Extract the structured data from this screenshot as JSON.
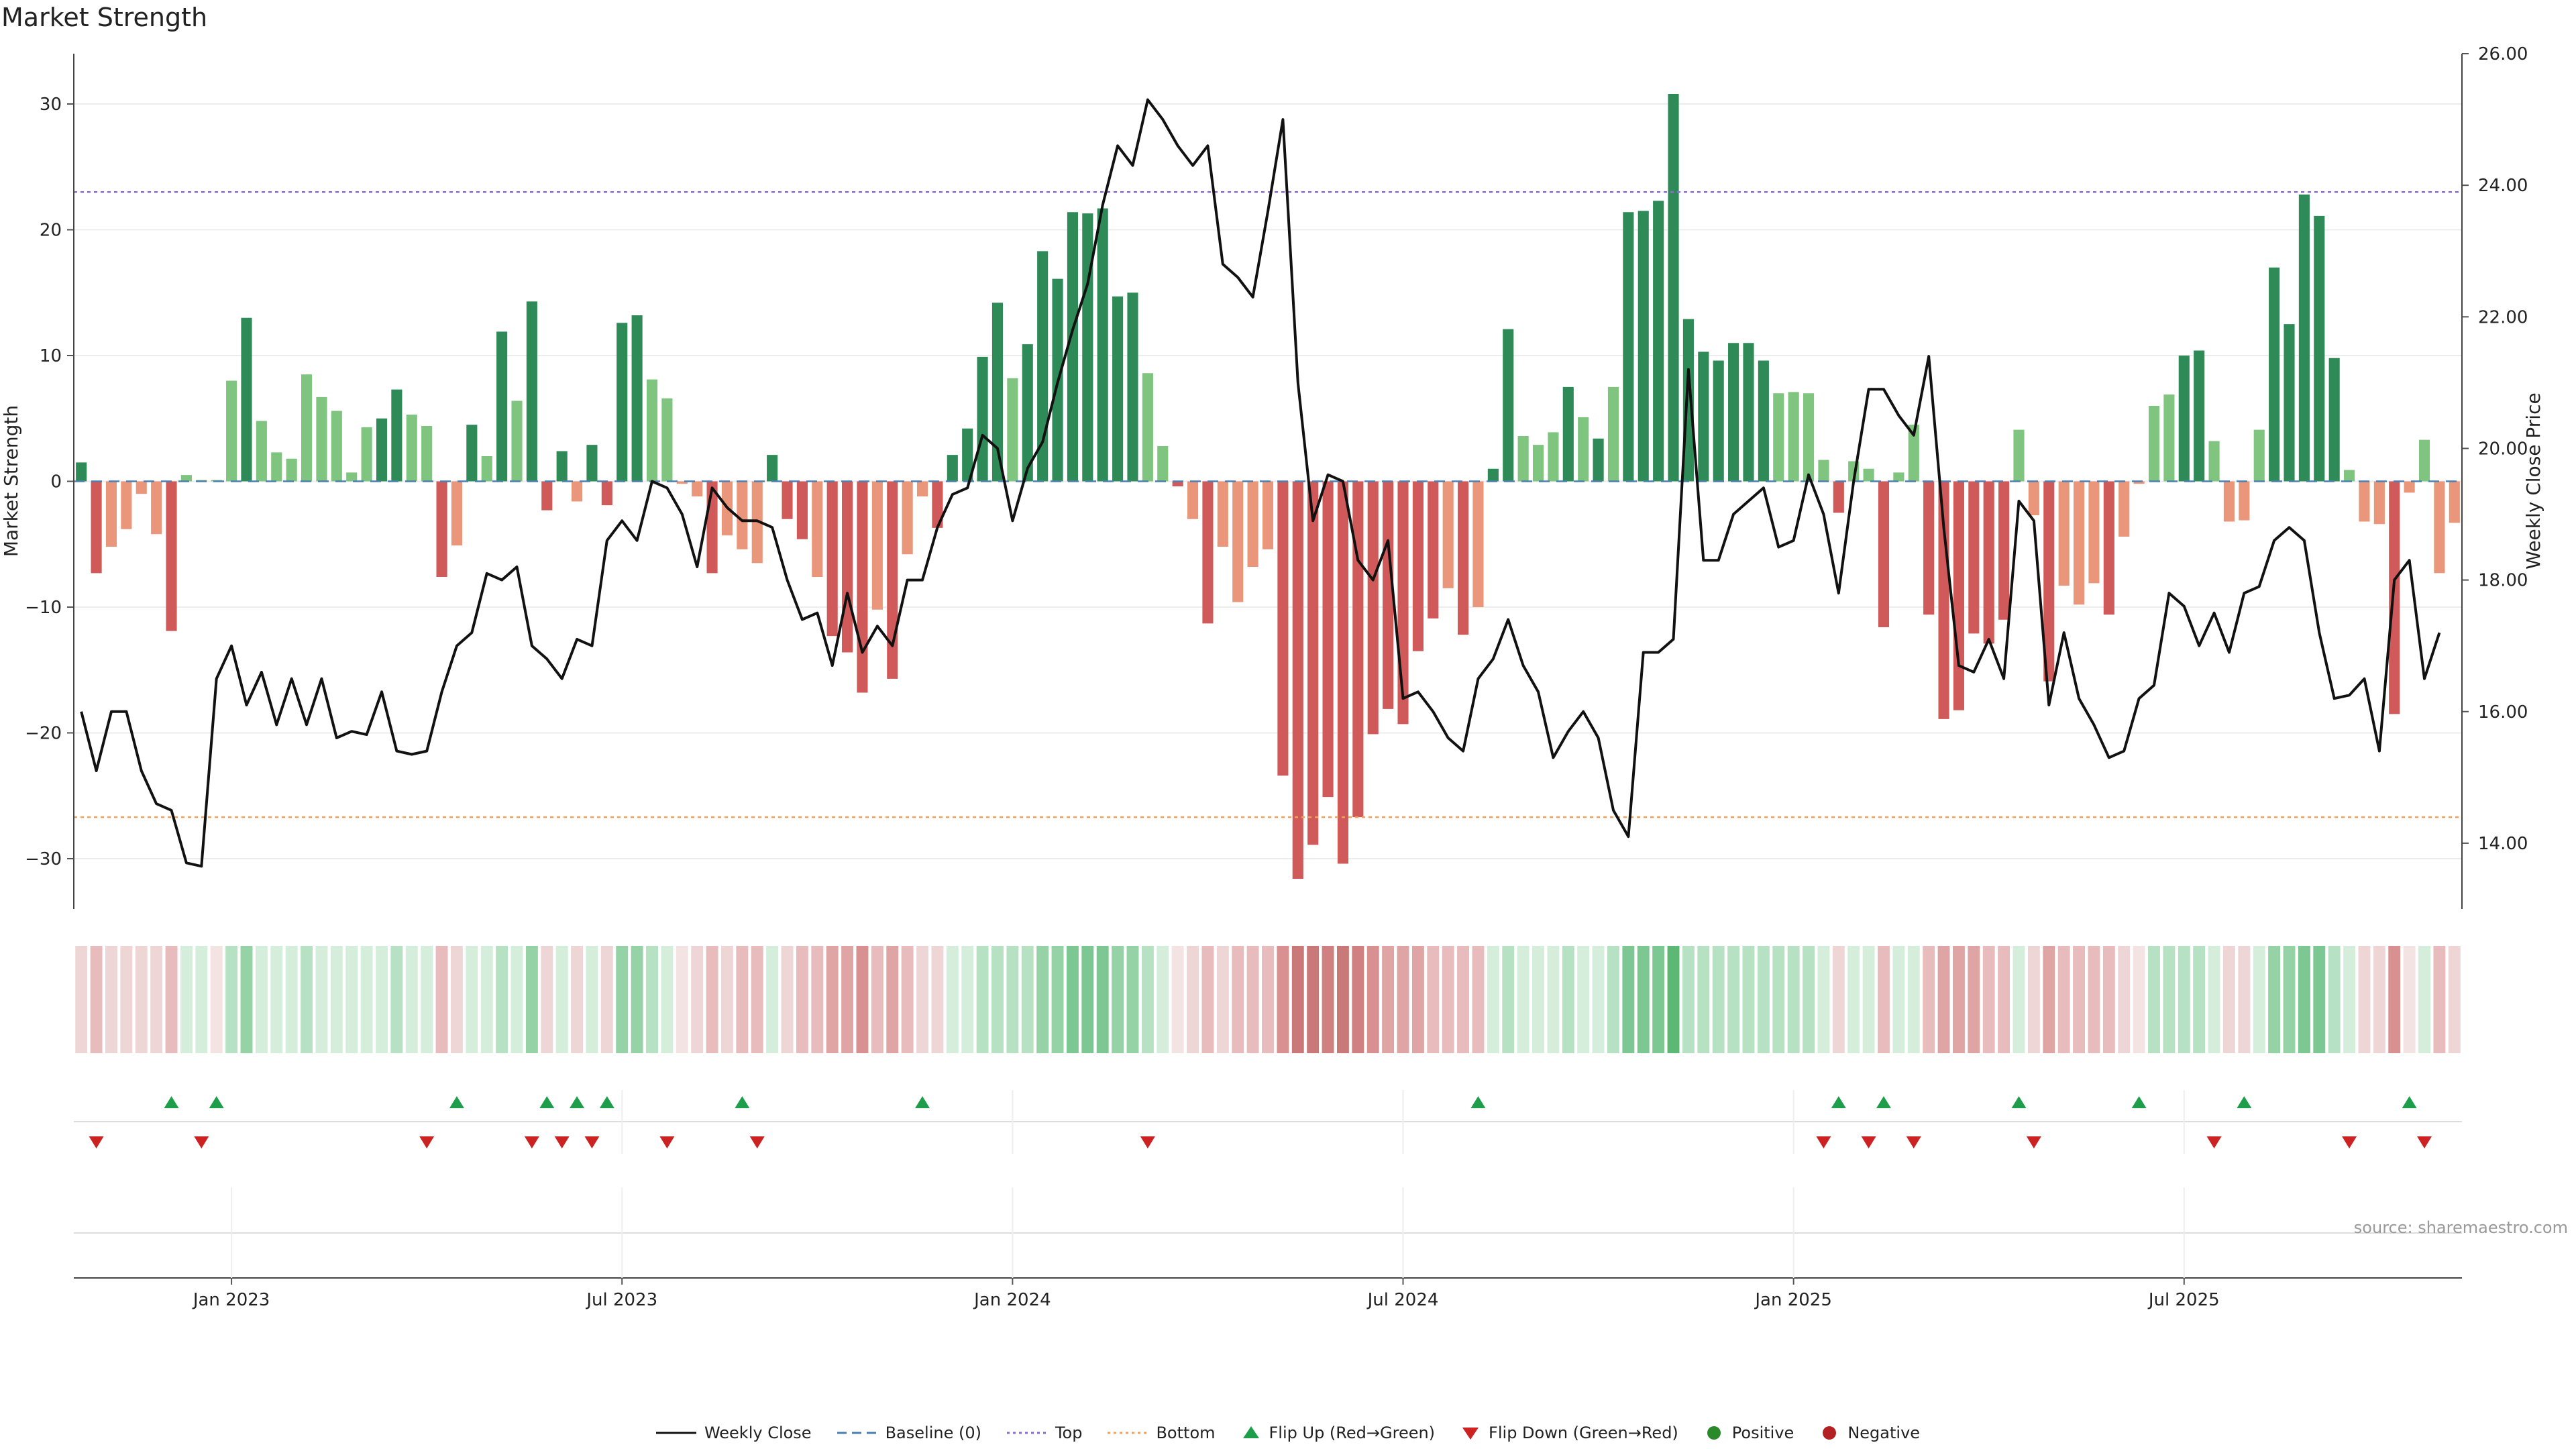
{
  "chart_data": {
    "type": "bar",
    "title": "Market Strength",
    "source": "source: sharemaestro.com",
    "ylabel_left": "Market Strength",
    "ylabel_right": "Weekly Close Price",
    "ylim_left": [
      -34,
      34
    ],
    "ylim_right": [
      13.0,
      26.0
    ],
    "left_ticks": [
      30,
      20,
      10,
      0,
      -10,
      -20,
      -30
    ],
    "left_tick_labels": [
      "30",
      "20",
      "10",
      "0",
      "−10",
      "−20",
      "−30"
    ],
    "right_ticks": [
      14,
      16,
      18,
      20,
      22,
      24,
      26
    ],
    "right_tick_labels": [
      "14.00",
      "16.00",
      "18.00",
      "20.00",
      "22.00",
      "24.00",
      "26.00"
    ],
    "top_level": 23,
    "bottom_level": -26.7,
    "baseline": 0,
    "x_tick_weeks": [
      10,
      36,
      62,
      88,
      114,
      140
    ],
    "x_tick_labels": [
      "Jan 2023",
      "Jul 2023",
      "Jan 2024",
      "Jul 2024",
      "Jan 2025",
      "Jul 2025"
    ],
    "strength": [
      1.5,
      -7.3,
      -5.2,
      -3.8,
      -1.0,
      -4.2,
      -11.9,
      0.5,
      0.1,
      0.1,
      8.0,
      13.0,
      4.8,
      2.3,
      1.8,
      8.5,
      6.7,
      5.6,
      0.7,
      4.3,
      5.0,
      7.3,
      5.3,
      4.4,
      -7.6,
      -5.1,
      4.5,
      2.0,
      11.9,
      6.4,
      14.3,
      -2.3,
      2.4,
      -1.6,
      2.9,
      -1.9,
      12.6,
      13.2,
      8.1,
      6.6,
      -0.2,
      -1.2,
      -7.3,
      -4.3,
      -5.4,
      -6.5,
      2.1,
      -3.0,
      -4.6,
      -7.6,
      -12.3,
      -13.6,
      -16.8,
      -10.2,
      -15.7,
      -5.8,
      -1.2,
      -3.7,
      2.1,
      4.2,
      9.9,
      14.2,
      8.2,
      10.9,
      18.3,
      16.1,
      21.4,
      21.3,
      21.7,
      14.7,
      15.0,
      8.6,
      2.8,
      -0.4,
      -3.0,
      -11.3,
      -5.2,
      -9.6,
      -6.8,
      -5.4,
      -23.4,
      -31.6,
      -28.9,
      -25.1,
      -30.4,
      -26.7,
      -20.1,
      -18.1,
      -19.3,
      -13.5,
      -10.9,
      -8.5,
      -12.2,
      -10.0,
      1.0,
      12.1,
      3.6,
      2.9,
      3.9,
      7.5,
      5.1,
      3.4,
      7.5,
      21.4,
      21.5,
      22.3,
      30.8,
      12.9,
      10.3,
      9.6,
      11.0,
      11.0,
      9.6,
      7.0,
      7.1,
      7.0,
      1.7,
      -2.5,
      1.6,
      1.0,
      -11.6,
      0.7,
      4.5,
      -10.6,
      -18.9,
      -18.2,
      -12.1,
      -12.9,
      -11.0,
      4.1,
      -2.7,
      -15.9,
      -8.3,
      -9.8,
      -8.1,
      -10.6,
      -4.4,
      -0.2,
      6.0,
      6.9,
      10.0,
      10.4,
      3.2,
      -3.2,
      -3.1,
      4.1,
      17.0,
      12.5,
      22.8,
      21.1,
      9.8,
      0.9,
      -3.2,
      -3.4,
      -18.5,
      -0.9,
      3.3,
      -7.3,
      -3.3
    ],
    "close": [
      16.0,
      15.1,
      16.0,
      16.0,
      15.1,
      14.6,
      14.5,
      13.7,
      13.65,
      16.5,
      17.0,
      16.1,
      16.6,
      15.8,
      16.5,
      15.8,
      16.5,
      15.6,
      15.7,
      15.65,
      16.3,
      15.4,
      15.35,
      15.4,
      16.3,
      17.0,
      17.2,
      18.1,
      18.0,
      18.2,
      17.0,
      16.8,
      16.5,
      17.1,
      17.0,
      18.6,
      18.9,
      18.6,
      19.5,
      19.4,
      19.0,
      18.2,
      19.4,
      19.1,
      18.9,
      18.9,
      18.8,
      18.0,
      17.4,
      17.5,
      16.7,
      17.8,
      16.9,
      17.3,
      17.0,
      18.0,
      18.0,
      18.8,
      19.3,
      19.4,
      20.2,
      20.0,
      18.9,
      19.7,
      20.1,
      21.0,
      21.8,
      22.5,
      23.7,
      24.6,
      24.3,
      25.3,
      25.0,
      24.6,
      24.3,
      24.6,
      22.8,
      22.6,
      22.3,
      23.6,
      25.0,
      21.0,
      18.9,
      19.6,
      19.5,
      18.3,
      18.0,
      18.6,
      16.2,
      16.3,
      16.0,
      15.6,
      15.4,
      16.5,
      16.8,
      17.4,
      16.7,
      16.3,
      15.3,
      15.7,
      16.0,
      15.6,
      14.5,
      14.1,
      16.9,
      16.9,
      17.1,
      21.2,
      18.3,
      18.3,
      19.0,
      19.2,
      19.4,
      18.5,
      18.6,
      19.6,
      19.0,
      17.8,
      19.5,
      20.9,
      20.9,
      20.5,
      20.2,
      21.4,
      18.8,
      16.7,
      16.6,
      17.1,
      16.5,
      19.2,
      18.9,
      16.1,
      17.2,
      16.2,
      15.8,
      15.3,
      15.4,
      16.2,
      16.4,
      17.8,
      17.6,
      17.0,
      17.5,
      16.9,
      17.8,
      17.9,
      18.6,
      18.8,
      18.6,
      17.2,
      16.2,
      16.25,
      16.5,
      15.4,
      18.0,
      18.3,
      16.5,
      17.2
    ],
    "flip_up_weeks": [
      6,
      9,
      25,
      31,
      33,
      35,
      44,
      56,
      93,
      117,
      120,
      129,
      137,
      144,
      155
    ],
    "flip_down_weeks": [
      1,
      8,
      23,
      30,
      32,
      34,
      39,
      45,
      71,
      116,
      119,
      122,
      130,
      142,
      151,
      156
    ],
    "heat_colors": [
      "#eed6d6",
      "#e8bcbc",
      "#eed6d6",
      "#eed6d6",
      "#eed6d6",
      "#eed6d6",
      "#e8bcbc",
      "#d4eedb",
      "#d4eedb",
      "#f3e3e3",
      "#b7e1c3",
      "#95d2a6",
      "#d4eedb",
      "#d4eedb",
      "#d4eedb",
      "#b7e1c3",
      "#d4eedb",
      "#d4eedb",
      "#d4eedb",
      "#d4eedb",
      "#d4eedb",
      "#b7e1c3",
      "#d4eedb",
      "#d4eedb",
      "#e8bcbc",
      "#eed6d6",
      "#d4eedb",
      "#d4eedb",
      "#b7e1c3",
      "#d4eedb",
      "#95d2a6",
      "#eed6d6",
      "#d4eedb",
      "#eed6d6",
      "#d4eedb",
      "#eed6d6",
      "#95d2a6",
      "#95d2a6",
      "#b7e1c3",
      "#d4eedb",
      "#f3e3e3",
      "#eed6d6",
      "#e8bcbc",
      "#eed6d6",
      "#e8bcbc",
      "#e8bcbc",
      "#d4eedb",
      "#eed6d6",
      "#e8bcbc",
      "#e8bcbc",
      "#dfa5a5",
      "#dfa5a5",
      "#d89090",
      "#e8bcbc",
      "#dfa5a5",
      "#e8bcbc",
      "#eed6d6",
      "#eed6d6",
      "#d4eedb",
      "#d4eedb",
      "#b7e1c3",
      "#b7e1c3",
      "#b7e1c3",
      "#b7e1c3",
      "#95d2a6",
      "#95d2a6",
      "#7dc792",
      "#7dc792",
      "#7dc792",
      "#95d2a6",
      "#95d2a6",
      "#b7e1c3",
      "#d4eedb",
      "#f3e3e3",
      "#eed6d6",
      "#e8bcbc",
      "#eed6d6",
      "#e8bcbc",
      "#e8bcbc",
      "#e8bcbc",
      "#d89090",
      "#c97a78",
      "#c97a78",
      "#d08080",
      "#c97a78",
      "#d08080",
      "#d89090",
      "#dfa5a5",
      "#dfa5a5",
      "#dfa5a5",
      "#e8bcbc",
      "#e8bcbc",
      "#e8bcbc",
      "#e8bcbc",
      "#d4eedb",
      "#b7e1c3",
      "#d4eedb",
      "#d4eedb",
      "#d4eedb",
      "#b7e1c3",
      "#d4eedb",
      "#d4eedb",
      "#b7e1c3",
      "#7dc792",
      "#7dc792",
      "#7dc792",
      "#5db775",
      "#b7e1c3",
      "#b7e1c3",
      "#b7e1c3",
      "#b7e1c3",
      "#b7e1c3",
      "#b7e1c3",
      "#b7e1c3",
      "#b7e1c3",
      "#b7e1c3",
      "#d4eedb",
      "#eed6d6",
      "#d4eedb",
      "#d4eedb",
      "#e8bcbc",
      "#d4eedb",
      "#d4eedb",
      "#e8bcbc",
      "#dfa5a5",
      "#dfa5a5",
      "#dfa5a5",
      "#e8bcbc",
      "#e8bcbc",
      "#d4eedb",
      "#eed6d6",
      "#dfa5a5",
      "#e8bcbc",
      "#e8bcbc",
      "#e8bcbc",
      "#e8bcbc",
      "#eed6d6",
      "#f3e3e3",
      "#b7e1c3",
      "#b7e1c3",
      "#b7e1c3",
      "#b7e1c3",
      "#d4eedb",
      "#eed6d6",
      "#eed6d6",
      "#d4eedb",
      "#95d2a6",
      "#95d2a6",
      "#7dc792",
      "#7dc792",
      "#b7e1c3",
      "#d4eedb",
      "#eed6d6",
      "#eed6d6",
      "#d89090",
      "#f3e3e3",
      "#d4eedb",
      "#e8bcbc",
      "#eed6d6"
    ]
  },
  "legend": {
    "weekly_close": "Weekly Close",
    "baseline": "Baseline (0)",
    "top": "Top",
    "bottom": "Bottom",
    "flip_up": "Flip Up (Red→Green)",
    "flip_down": "Flip Down (Green→Red)",
    "positive": "Positive",
    "negative": "Negative"
  },
  "colors": {
    "pos_strong": "#2e8b57",
    "pos_light": "#7fc47f",
    "neg_strong": "#d05a5a",
    "neg_light": "#e9967a",
    "line": "#111111",
    "top_line": "#8a6fcf",
    "bottom_line": "#f0a060",
    "baseline": "#4a7fb0",
    "flip_up": "#1e9e4a",
    "flip_down": "#cc2222",
    "positive_dot": "#2a8a2a",
    "negative_dot": "#b22222"
  }
}
